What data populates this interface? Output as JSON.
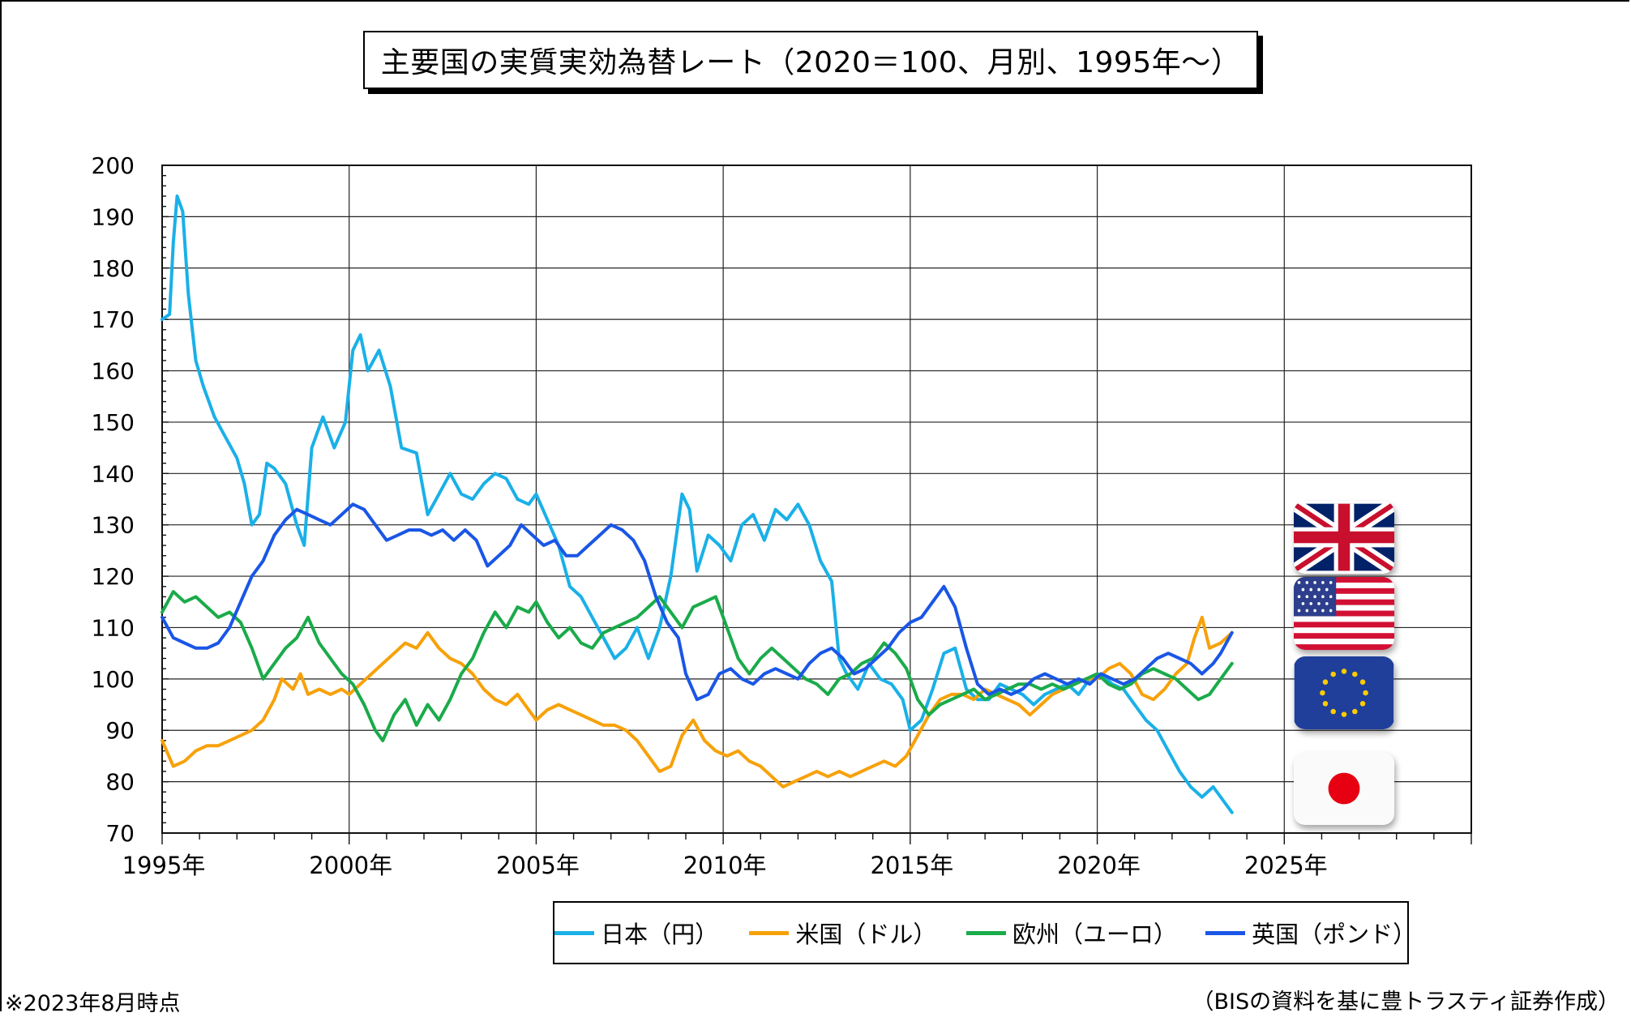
{
  "title": "主要国の実質実効為替レート（2020＝100、月別、1995年～）",
  "note_left": "※2023年8月時点",
  "note_right": "（BISの資料を基に豊トラスティ証券作成）",
  "chart_data": {
    "type": "line",
    "title": "主要国の実質実効為替レート（2020＝100、月別、1995年～）",
    "xlabel": "",
    "ylabel": "",
    "x_ticks": [
      "1995年",
      "2000年",
      "2005年",
      "2010年",
      "2015年",
      "2020年",
      "2025年"
    ],
    "x_tick_values": [
      1995,
      2000,
      2005,
      2010,
      2015,
      2020,
      2025
    ],
    "xlim": [
      1995,
      2030
    ],
    "ylim": [
      70,
      200
    ],
    "y_ticks": [
      70,
      80,
      90,
      100,
      110,
      120,
      130,
      140,
      150,
      160,
      170,
      180,
      190,
      200
    ],
    "grid": true,
    "legend_position": "bottom",
    "series": [
      {
        "name": "日本（円）",
        "color": "#1ab0e8",
        "x": [
          1995.0,
          1995.2,
          1995.3,
          1995.4,
          1995.55,
          1995.7,
          1995.9,
          1996.1,
          1996.4,
          1996.7,
          1997.0,
          1997.2,
          1997.4,
          1997.6,
          1997.8,
          1998.0,
          1998.3,
          1998.6,
          1998.8,
          1999.0,
          1999.3,
          1999.6,
          1999.9,
          2000.1,
          2000.3,
          2000.5,
          2000.8,
          2001.1,
          2001.4,
          2001.8,
          2002.1,
          2002.4,
          2002.7,
          2003.0,
          2003.3,
          2003.6,
          2003.9,
          2004.2,
          2004.5,
          2004.8,
          2005.0,
          2005.3,
          2005.6,
          2005.9,
          2006.2,
          2006.5,
          2006.8,
          2007.1,
          2007.4,
          2007.7,
          2008.0,
          2008.3,
          2008.6,
          2008.9,
          2009.1,
          2009.3,
          2009.6,
          2009.9,
          2010.2,
          2010.5,
          2010.8,
          2011.1,
          2011.4,
          2011.7,
          2012.0,
          2012.3,
          2012.6,
          2012.9,
          2013.1,
          2013.3,
          2013.6,
          2013.9,
          2014.2,
          2014.5,
          2014.8,
          2015.0,
          2015.3,
          2015.6,
          2015.9,
          2016.2,
          2016.5,
          2016.8,
          2017.1,
          2017.4,
          2017.7,
          2018.0,
          2018.3,
          2018.6,
          2018.9,
          2019.2,
          2019.5,
          2019.8,
          2020.1,
          2020.4,
          2020.7,
          2021.0,
          2021.3,
          2021.6,
          2021.9,
          2022.2,
          2022.5,
          2022.8,
          2023.1,
          2023.4,
          2023.6
        ],
        "values": [
          170,
          171,
          185,
          194,
          191,
          175,
          162,
          157,
          151,
          147,
          143,
          138,
          130,
          132,
          142,
          141,
          138,
          130,
          126,
          145,
          151,
          145,
          150,
          164,
          167,
          160,
          164,
          157,
          145,
          144,
          132,
          136,
          140,
          136,
          135,
          138,
          140,
          139,
          135,
          134,
          136,
          131,
          126,
          118,
          116,
          112,
          108,
          104,
          106,
          110,
          104,
          110,
          120,
          136,
          133,
          121,
          128,
          126,
          123,
          130,
          132,
          127,
          133,
          131,
          134,
          130,
          123,
          119,
          104,
          101,
          98,
          103,
          100,
          99,
          96,
          90,
          92,
          98,
          105,
          106,
          98,
          96,
          96,
          99,
          98,
          97,
          95,
          97,
          98,
          99,
          97,
          100,
          101,
          99,
          98,
          95,
          92,
          90,
          86,
          82,
          79,
          77,
          79,
          76,
          74
        ]
      },
      {
        "name": "米国（ドル）",
        "color": "#f7a10a",
        "x": [
          1995.0,
          1995.3,
          1995.6,
          1995.9,
          1996.2,
          1996.5,
          1996.8,
          1997.1,
          1997.4,
          1997.7,
          1998.0,
          1998.2,
          1998.5,
          1998.7,
          1998.9,
          1999.2,
          1999.5,
          1999.8,
          2000.0,
          2000.3,
          2000.6,
          2000.9,
          2001.2,
          2001.5,
          2001.8,
          2002.1,
          2002.4,
          2002.7,
          2003.0,
          2003.3,
          2003.6,
          2003.9,
          2004.2,
          2004.5,
          2004.8,
          2005.0,
          2005.3,
          2005.6,
          2005.9,
          2006.2,
          2006.5,
          2006.8,
          2007.1,
          2007.4,
          2007.7,
          2008.0,
          2008.3,
          2008.6,
          2008.9,
          2009.2,
          2009.5,
          2009.8,
          2010.1,
          2010.4,
          2010.7,
          2011.0,
          2011.3,
          2011.6,
          2011.9,
          2012.2,
          2012.5,
          2012.8,
          2013.1,
          2013.4,
          2013.7,
          2014.0,
          2014.3,
          2014.6,
          2014.9,
          2015.2,
          2015.5,
          2015.8,
          2016.1,
          2016.4,
          2016.7,
          2017.0,
          2017.3,
          2017.6,
          2017.9,
          2018.2,
          2018.5,
          2018.8,
          2019.1,
          2019.4,
          2019.7,
          2020.0,
          2020.3,
          2020.6,
          2020.9,
          2021.2,
          2021.5,
          2021.8,
          2022.1,
          2022.4,
          2022.6,
          2022.8,
          2023.0,
          2023.3,
          2023.6
        ],
        "values": [
          88,
          83,
          84,
          86,
          87,
          87,
          88,
          89,
          90,
          92,
          96,
          100,
          98,
          101,
          97,
          98,
          97,
          98,
          97,
          99,
          101,
          103,
          105,
          107,
          106,
          109,
          106,
          104,
          103,
          101,
          98,
          96,
          95,
          97,
          94,
          92,
          94,
          95,
          94,
          93,
          92,
          91,
          91,
          90,
          88,
          85,
          82,
          83,
          89,
          92,
          88,
          86,
          85,
          86,
          84,
          83,
          81,
          79,
          80,
          81,
          82,
          81,
          82,
          81,
          82,
          83,
          84,
          83,
          85,
          89,
          93,
          96,
          97,
          97,
          96,
          98,
          97,
          96,
          95,
          93,
          95,
          97,
          98,
          99,
          100,
          100,
          102,
          103,
          101,
          97,
          96,
          98,
          101,
          103,
          108,
          112,
          106,
          107,
          109
        ]
      },
      {
        "name": "欧州（ユーロ）",
        "color": "#1aab4a",
        "x": [
          1995.0,
          1995.3,
          1995.6,
          1995.9,
          1996.2,
          1996.5,
          1996.8,
          1997.1,
          1997.4,
          1997.7,
          1998.0,
          1998.3,
          1998.6,
          1998.9,
          1999.2,
          1999.5,
          1999.8,
          2000.1,
          2000.4,
          2000.7,
          2000.9,
          2001.2,
          2001.5,
          2001.8,
          2002.1,
          2002.4,
          2002.7,
          2003.0,
          2003.3,
          2003.6,
          2003.9,
          2004.2,
          2004.5,
          2004.8,
          2005.0,
          2005.3,
          2005.6,
          2005.9,
          2006.2,
          2006.5,
          2006.8,
          2007.1,
          2007.4,
          2007.7,
          2008.0,
          2008.3,
          2008.6,
          2008.9,
          2009.2,
          2009.5,
          2009.8,
          2010.1,
          2010.4,
          2010.7,
          2011.0,
          2011.3,
          2011.6,
          2011.9,
          2012.2,
          2012.5,
          2012.8,
          2013.1,
          2013.4,
          2013.7,
          2014.0,
          2014.3,
          2014.6,
          2014.9,
          2015.2,
          2015.5,
          2015.8,
          2016.1,
          2016.4,
          2016.7,
          2017.0,
          2017.3,
          2017.6,
          2017.9,
          2018.2,
          2018.5,
          2018.8,
          2019.1,
          2019.4,
          2019.7,
          2020.0,
          2020.3,
          2020.6,
          2020.9,
          2021.2,
          2021.5,
          2021.8,
          2022.1,
          2022.4,
          2022.7,
          2023.0,
          2023.3,
          2023.6
        ],
        "values": [
          113,
          117,
          115,
          116,
          114,
          112,
          113,
          111,
          106,
          100,
          103,
          106,
          108,
          112,
          107,
          104,
          101,
          99,
          95,
          90,
          88,
          93,
          96,
          91,
          95,
          92,
          96,
          101,
          104,
          109,
          113,
          110,
          114,
          113,
          115,
          111,
          108,
          110,
          107,
          106,
          109,
          110,
          111,
          112,
          114,
          116,
          113,
          110,
          114,
          115,
          116,
          110,
          104,
          101,
          104,
          106,
          104,
          102,
          100,
          99,
          97,
          100,
          101,
          103,
          104,
          107,
          105,
          102,
          96,
          93,
          95,
          96,
          97,
          98,
          96,
          97,
          98,
          99,
          99,
          98,
          99,
          98,
          99,
          100,
          101,
          99,
          98,
          99,
          101,
          102,
          101,
          100,
          98,
          96,
          97,
          100,
          103
        ]
      },
      {
        "name": "英国（ポンド）",
        "color": "#1a56e6",
        "x": [
          1995.0,
          1995.3,
          1995.6,
          1995.9,
          1996.2,
          1996.5,
          1996.8,
          1997.1,
          1997.4,
          1997.7,
          1998.0,
          1998.3,
          1998.6,
          1998.9,
          1999.2,
          1999.5,
          1999.8,
          2000.1,
          2000.4,
          2000.7,
          2001.0,
          2001.3,
          2001.6,
          2001.9,
          2002.2,
          2002.5,
          2002.8,
          2003.1,
          2003.4,
          2003.7,
          2004.0,
          2004.3,
          2004.6,
          2004.9,
          2005.2,
          2005.5,
          2005.8,
          2006.1,
          2006.4,
          2006.7,
          2007.0,
          2007.3,
          2007.6,
          2007.9,
          2008.2,
          2008.5,
          2008.8,
          2009.0,
          2009.3,
          2009.6,
          2009.9,
          2010.2,
          2010.5,
          2010.8,
          2011.1,
          2011.4,
          2011.7,
          2012.0,
          2012.3,
          2012.6,
          2012.9,
          2013.2,
          2013.5,
          2013.8,
          2014.1,
          2014.4,
          2014.7,
          2015.0,
          2015.3,
          2015.6,
          2015.9,
          2016.2,
          2016.5,
          2016.8,
          2017.1,
          2017.4,
          2017.7,
          2018.0,
          2018.3,
          2018.6,
          2018.9,
          2019.2,
          2019.5,
          2019.8,
          2020.1,
          2020.4,
          2020.7,
          2021.0,
          2021.3,
          2021.6,
          2021.9,
          2022.2,
          2022.5,
          2022.8,
          2023.1,
          2023.3,
          2023.6
        ],
        "values": [
          112,
          108,
          107,
          106,
          106,
          107,
          110,
          115,
          120,
          123,
          128,
          131,
          133,
          132,
          131,
          130,
          132,
          134,
          133,
          130,
          127,
          128,
          129,
          129,
          128,
          129,
          127,
          129,
          127,
          122,
          124,
          126,
          130,
          128,
          126,
          127,
          124,
          124,
          126,
          128,
          130,
          129,
          127,
          123,
          116,
          111,
          108,
          101,
          96,
          97,
          101,
          102,
          100,
          99,
          101,
          102,
          101,
          100,
          103,
          105,
          106,
          104,
          101,
          102,
          104,
          106,
          109,
          111,
          112,
          115,
          118,
          114,
          106,
          99,
          97,
          98,
          97,
          98,
          100,
          101,
          100,
          99,
          100,
          99,
          101,
          100,
          99,
          100,
          102,
          104,
          105,
          104,
          103,
          101,
          103,
          105,
          109
        ]
      }
    ]
  },
  "legend": [
    {
      "label": "日本（円）",
      "color": "#1ab0e8"
    },
    {
      "label": "米国（ドル）",
      "color": "#f7a10a"
    },
    {
      "label": "欧州（ユーロ）",
      "color": "#1aab4a"
    },
    {
      "label": "英国（ポンド）",
      "color": "#1a56e6"
    }
  ],
  "flags": [
    {
      "icon": "uk-flag-icon"
    },
    {
      "icon": "us-flag-icon"
    },
    {
      "icon": "eu-flag-icon"
    },
    {
      "icon": "japan-flag-icon"
    }
  ]
}
